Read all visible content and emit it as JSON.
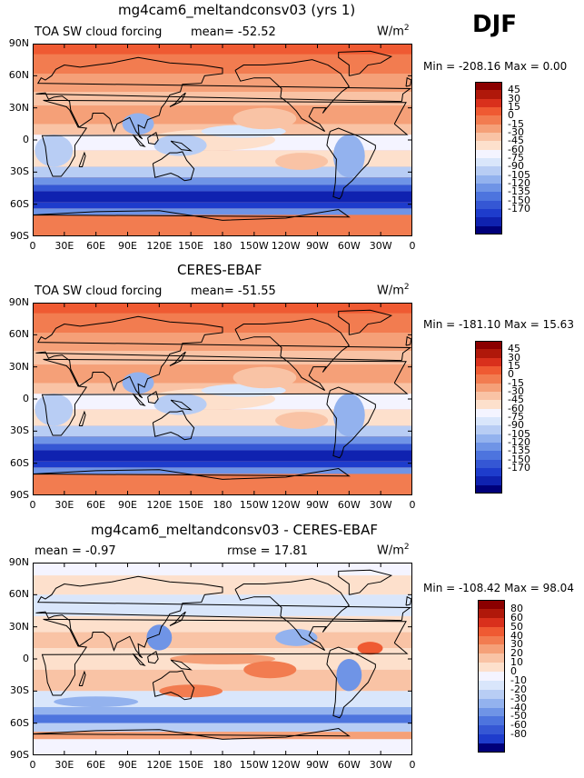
{
  "season": "DJF",
  "lat_ticks": [
    "90N",
    "60N",
    "30N",
    "0",
    "30S",
    "60S",
    "90S"
  ],
  "lon_ticks": [
    "0",
    "30E",
    "60E",
    "90E",
    "120E",
    "150E",
    "180",
    "150W",
    "120W",
    "90W",
    "60W",
    "30W",
    "0"
  ],
  "colors": {
    "abs": [
      "#8b0000",
      "#b0180a",
      "#d9301c",
      "#ef5a32",
      "#f27c50",
      "#f5a078",
      "#f9c3a5",
      "#fde0cc",
      "#f4f4ff",
      "#d9e6fb",
      "#b8cdf4",
      "#93b2ee",
      "#6f94e6",
      "#4d74de",
      "#3557d4",
      "#1e3ccc",
      "#0f22b0",
      "#00007a"
    ],
    "diff": [
      "#8b0000",
      "#b0180a",
      "#d9301c",
      "#ef5a32",
      "#f27c50",
      "#f5a078",
      "#f9c3a5",
      "#fde0cc",
      "#f4f4ff",
      "#d9e6fb",
      "#b8cdf4",
      "#93b2ee",
      "#6f94e6",
      "#4d74de",
      "#3557d4",
      "#1e3ccc",
      "#00007a"
    ]
  },
  "panels": [
    {
      "title": "mg4cam6_meltandconsv03 (yrs 1)",
      "left_header": "TOA SW cloud forcing",
      "center_header": "mean=  -52.52",
      "units": "W/m",
      "units_sup": "2",
      "min_max": "Min = -208.16  Max =    0.00",
      "colorbar_labels": [
        "45",
        "30",
        "15",
        "0",
        "-15",
        "-30",
        "-45",
        "-60",
        "-75",
        "-90",
        "-105",
        "-120",
        "-135",
        "-150",
        "-170"
      ]
    },
    {
      "title": "CERES-EBAF",
      "left_header": "TOA SW cloud forcing",
      "center_header": "mean=  -51.55",
      "units": "W/m",
      "units_sup": "2",
      "min_max": "Min = -181.10  Max =   15.63",
      "colorbar_labels": [
        "45",
        "30",
        "15",
        "0",
        "-15",
        "-30",
        "-45",
        "-60",
        "-75",
        "-90",
        "-105",
        "-120",
        "-135",
        "-150",
        "-170"
      ]
    },
    {
      "title": "mg4cam6_meltandconsv03 - CERES-EBAF",
      "left_header": "mean =  -0.97",
      "center_header": "rmse =   17.81",
      "units": "W/m",
      "units_sup": "2",
      "min_max": "Min = -108.42  Max =  98.04",
      "colorbar_labels": [
        "80",
        "60",
        "50",
        "40",
        "30",
        "20",
        "10",
        "0",
        "-10",
        "-20",
        "-30",
        "-40",
        "-50",
        "-60",
        "-80"
      ]
    }
  ]
}
